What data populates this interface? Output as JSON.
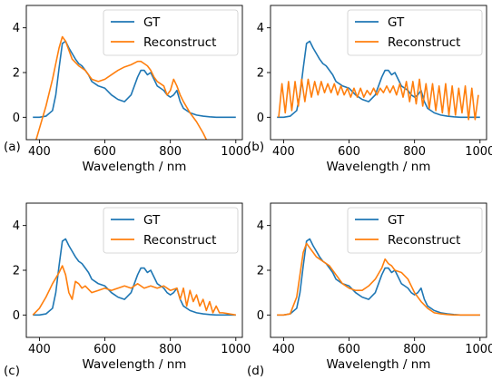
{
  "colors": {
    "gt": "#1f77b4",
    "reconstruct": "#ff7f0e",
    "axis": "#000000"
  },
  "chart_data": [
    {
      "type": "line",
      "panel_label": "(a)",
      "xlabel": "Wavelength / nm",
      "ylabel": "",
      "xlim": [
        360,
        1020
      ],
      "ylim": [
        -1.0,
        5.0
      ],
      "xticks": [
        400,
        600,
        800,
        1000
      ],
      "yticks": [
        0,
        2,
        4
      ],
      "legend": "top-right",
      "grid": false,
      "series": [
        {
          "name": "GT",
          "x": [
            380,
            400,
            420,
            440,
            450,
            460,
            470,
            480,
            490,
            500,
            510,
            520,
            530,
            540,
            550,
            560,
            570,
            580,
            600,
            620,
            640,
            660,
            680,
            700,
            710,
            720,
            730,
            740,
            750,
            760,
            770,
            780,
            790,
            800,
            810,
            820,
            830,
            840,
            860,
            880,
            900,
            920,
            940,
            960,
            980,
            1000
          ],
          "y": [
            0.0,
            0.0,
            0.05,
            0.3,
            1.0,
            2.2,
            3.3,
            3.4,
            3.1,
            2.85,
            2.6,
            2.4,
            2.3,
            2.1,
            1.9,
            1.6,
            1.5,
            1.4,
            1.3,
            1.0,
            0.8,
            0.7,
            1.0,
            1.8,
            2.1,
            2.1,
            1.9,
            2.0,
            1.7,
            1.4,
            1.3,
            1.2,
            1.0,
            0.9,
            1.0,
            1.2,
            0.7,
            0.4,
            0.2,
            0.1,
            0.05,
            0.02,
            0.0,
            0.0,
            0.0,
            0.0
          ]
        },
        {
          "name": "Reconstruct",
          "x": [
            390,
            400,
            410,
            420,
            430,
            440,
            450,
            460,
            470,
            480,
            490,
            500,
            520,
            540,
            560,
            580,
            600,
            620,
            640,
            660,
            680,
            700,
            710,
            720,
            730,
            740,
            750,
            760,
            770,
            780,
            790,
            800,
            810,
            820,
            830,
            840,
            860,
            880,
            900,
            910
          ],
          "y": [
            -1.0,
            -0.5,
            0.0,
            0.5,
            1.1,
            1.7,
            2.4,
            3.1,
            3.6,
            3.4,
            3.0,
            2.6,
            2.3,
            2.1,
            1.7,
            1.6,
            1.7,
            1.9,
            2.1,
            2.25,
            2.35,
            2.5,
            2.5,
            2.4,
            2.3,
            2.1,
            1.8,
            1.6,
            1.5,
            1.4,
            1.0,
            1.2,
            1.7,
            1.4,
            1.0,
            0.7,
            0.2,
            -0.2,
            -0.7,
            -1.0
          ]
        }
      ]
    },
    {
      "type": "line",
      "panel_label": "(b)",
      "xlabel": "Wavelength / nm",
      "ylabel": "",
      "xlim": [
        360,
        1020
      ],
      "ylim": [
        -1.0,
        5.0
      ],
      "xticks": [
        400,
        600,
        800,
        1000
      ],
      "yticks": [
        0,
        2,
        4
      ],
      "legend": "top-right",
      "grid": false,
      "series": [
        {
          "name": "GT",
          "x": [
            380,
            400,
            420,
            440,
            450,
            460,
            470,
            480,
            490,
            500,
            510,
            520,
            530,
            540,
            550,
            560,
            570,
            580,
            600,
            620,
            640,
            660,
            680,
            700,
            710,
            720,
            730,
            740,
            750,
            760,
            770,
            780,
            790,
            800,
            810,
            820,
            830,
            840,
            860,
            880,
            900,
            920,
            940,
            960,
            980,
            1000
          ],
          "y": [
            0.0,
            0.0,
            0.05,
            0.3,
            1.0,
            2.2,
            3.3,
            3.4,
            3.1,
            2.85,
            2.6,
            2.4,
            2.3,
            2.1,
            1.9,
            1.6,
            1.5,
            1.4,
            1.3,
            1.0,
            0.8,
            0.7,
            1.0,
            1.8,
            2.1,
            2.1,
            1.9,
            2.0,
            1.7,
            1.4,
            1.3,
            1.2,
            1.0,
            0.9,
            1.0,
            1.2,
            0.7,
            0.4,
            0.2,
            0.1,
            0.05,
            0.02,
            0.0,
            0.0,
            0.0,
            0.0
          ]
        },
        {
          "name": "Reconstruct",
          "x": [
            385,
            395,
            405,
            415,
            425,
            435,
            445,
            455,
            465,
            475,
            485,
            495,
            505,
            515,
            525,
            535,
            545,
            555,
            565,
            575,
            585,
            595,
            605,
            615,
            625,
            635,
            645,
            655,
            665,
            675,
            685,
            695,
            705,
            715,
            725,
            735,
            745,
            755,
            765,
            775,
            785,
            795,
            805,
            815,
            825,
            835,
            845,
            855,
            865,
            875,
            885,
            895,
            905,
            915,
            925,
            935,
            945,
            955,
            965,
            975,
            985,
            995
          ],
          "y": [
            0.0,
            1.5,
            0.2,
            1.6,
            0.3,
            1.6,
            0.5,
            1.7,
            0.7,
            1.7,
            0.9,
            1.6,
            1.0,
            1.6,
            1.1,
            1.5,
            1.1,
            1.5,
            1.0,
            1.4,
            1.0,
            1.3,
            0.9,
            1.3,
            0.9,
            1.3,
            0.9,
            1.2,
            1.0,
            1.3,
            1.0,
            1.3,
            1.1,
            1.4,
            1.1,
            1.4,
            1.0,
            1.5,
            0.9,
            1.6,
            0.7,
            1.6,
            0.6,
            1.7,
            0.5,
            1.5,
            0.4,
            1.5,
            0.3,
            1.4,
            0.2,
            1.5,
            0.1,
            1.4,
            0.1,
            1.3,
            0.2,
            1.4,
            -0.1,
            1.3,
            -0.1,
            1.0
          ]
        }
      ]
    },
    {
      "type": "line",
      "panel_label": "(c)",
      "xlabel": "Wavelength / nm",
      "ylabel": "",
      "xlim": [
        360,
        1020
      ],
      "ylim": [
        -1.0,
        5.0
      ],
      "xticks": [
        400,
        600,
        800,
        1000
      ],
      "yticks": [
        0,
        2,
        4
      ],
      "legend": "top-right",
      "grid": false,
      "series": [
        {
          "name": "GT",
          "x": [
            380,
            400,
            420,
            440,
            450,
            460,
            470,
            480,
            490,
            500,
            510,
            520,
            530,
            540,
            550,
            560,
            570,
            580,
            600,
            620,
            640,
            660,
            680,
            700,
            710,
            720,
            730,
            740,
            750,
            760,
            770,
            780,
            790,
            800,
            810,
            820,
            830,
            840,
            860,
            880,
            900,
            920,
            940,
            960,
            980,
            1000
          ],
          "y": [
            0.0,
            0.0,
            0.05,
            0.3,
            1.0,
            2.2,
            3.3,
            3.4,
            3.1,
            2.85,
            2.6,
            2.4,
            2.3,
            2.1,
            1.9,
            1.6,
            1.5,
            1.4,
            1.3,
            1.0,
            0.8,
            0.7,
            1.0,
            1.8,
            2.1,
            2.1,
            1.9,
            2.0,
            1.7,
            1.4,
            1.3,
            1.2,
            1.0,
            0.9,
            1.0,
            1.2,
            0.7,
            0.4,
            0.2,
            0.1,
            0.05,
            0.02,
            0.0,
            0.0,
            0.0,
            0.0
          ]
        },
        {
          "name": "Reconstruct",
          "x": [
            380,
            400,
            420,
            440,
            460,
            470,
            480,
            490,
            500,
            510,
            520,
            530,
            540,
            560,
            580,
            600,
            620,
            640,
            660,
            680,
            700,
            720,
            740,
            760,
            780,
            800,
            820,
            830,
            840,
            850,
            860,
            870,
            880,
            890,
            900,
            910,
            920,
            930,
            940,
            950,
            960,
            980,
            1000
          ],
          "y": [
            0.0,
            0.3,
            0.8,
            1.4,
            1.9,
            2.2,
            1.8,
            1.0,
            0.7,
            1.5,
            1.4,
            1.2,
            1.3,
            1.0,
            1.1,
            1.2,
            1.1,
            1.2,
            1.3,
            1.2,
            1.4,
            1.2,
            1.3,
            1.2,
            1.3,
            1.1,
            1.2,
            0.7,
            1.2,
            0.4,
            1.1,
            0.6,
            0.9,
            0.4,
            0.7,
            0.2,
            0.6,
            0.1,
            0.4,
            0.1,
            0.1,
            0.05,
            0.0
          ]
        }
      ]
    },
    {
      "type": "line",
      "panel_label": "(d)",
      "xlabel": "Wavelength / nm",
      "ylabel": "",
      "xlim": [
        360,
        1020
      ],
      "ylim": [
        -1.0,
        5.0
      ],
      "xticks": [
        400,
        600,
        800,
        1000
      ],
      "yticks": [
        0,
        2,
        4
      ],
      "legend": "top-right",
      "grid": false,
      "series": [
        {
          "name": "GT",
          "x": [
            380,
            400,
            420,
            440,
            450,
            460,
            470,
            480,
            490,
            500,
            510,
            520,
            530,
            540,
            550,
            560,
            570,
            580,
            600,
            620,
            640,
            660,
            680,
            700,
            710,
            720,
            730,
            740,
            750,
            760,
            770,
            780,
            790,
            800,
            810,
            820,
            830,
            840,
            860,
            880,
            900,
            920,
            940,
            960,
            980,
            1000
          ],
          "y": [
            0.0,
            0.0,
            0.05,
            0.3,
            1.0,
            2.2,
            3.3,
            3.4,
            3.1,
            2.85,
            2.6,
            2.4,
            2.3,
            2.1,
            1.9,
            1.6,
            1.5,
            1.4,
            1.3,
            1.0,
            0.8,
            0.7,
            1.0,
            1.8,
            2.1,
            2.1,
            1.9,
            2.0,
            1.7,
            1.4,
            1.3,
            1.2,
            1.0,
            0.9,
            1.0,
            1.2,
            0.7,
            0.4,
            0.2,
            0.1,
            0.05,
            0.02,
            0.0,
            0.0,
            0.0,
            0.0
          ]
        },
        {
          "name": "Reconstruct",
          "x": [
            380,
            400,
            420,
            440,
            450,
            460,
            470,
            480,
            490,
            500,
            520,
            540,
            560,
            580,
            600,
            620,
            640,
            660,
            680,
            700,
            710,
            720,
            730,
            740,
            760,
            780,
            800,
            820,
            840,
            860,
            880,
            900,
            920,
            940,
            960,
            980,
            1000
          ],
          "y": [
            0.0,
            0.0,
            0.05,
            0.8,
            1.8,
            2.8,
            3.2,
            3.0,
            2.8,
            2.6,
            2.4,
            2.2,
            1.8,
            1.4,
            1.2,
            1.1,
            1.1,
            1.3,
            1.6,
            2.1,
            2.5,
            2.3,
            2.2,
            2.0,
            1.9,
            1.6,
            1.0,
            0.6,
            0.3,
            0.1,
            0.05,
            0.02,
            0.0,
            0.0,
            0.0,
            0.0,
            0.0
          ]
        }
      ]
    }
  ]
}
